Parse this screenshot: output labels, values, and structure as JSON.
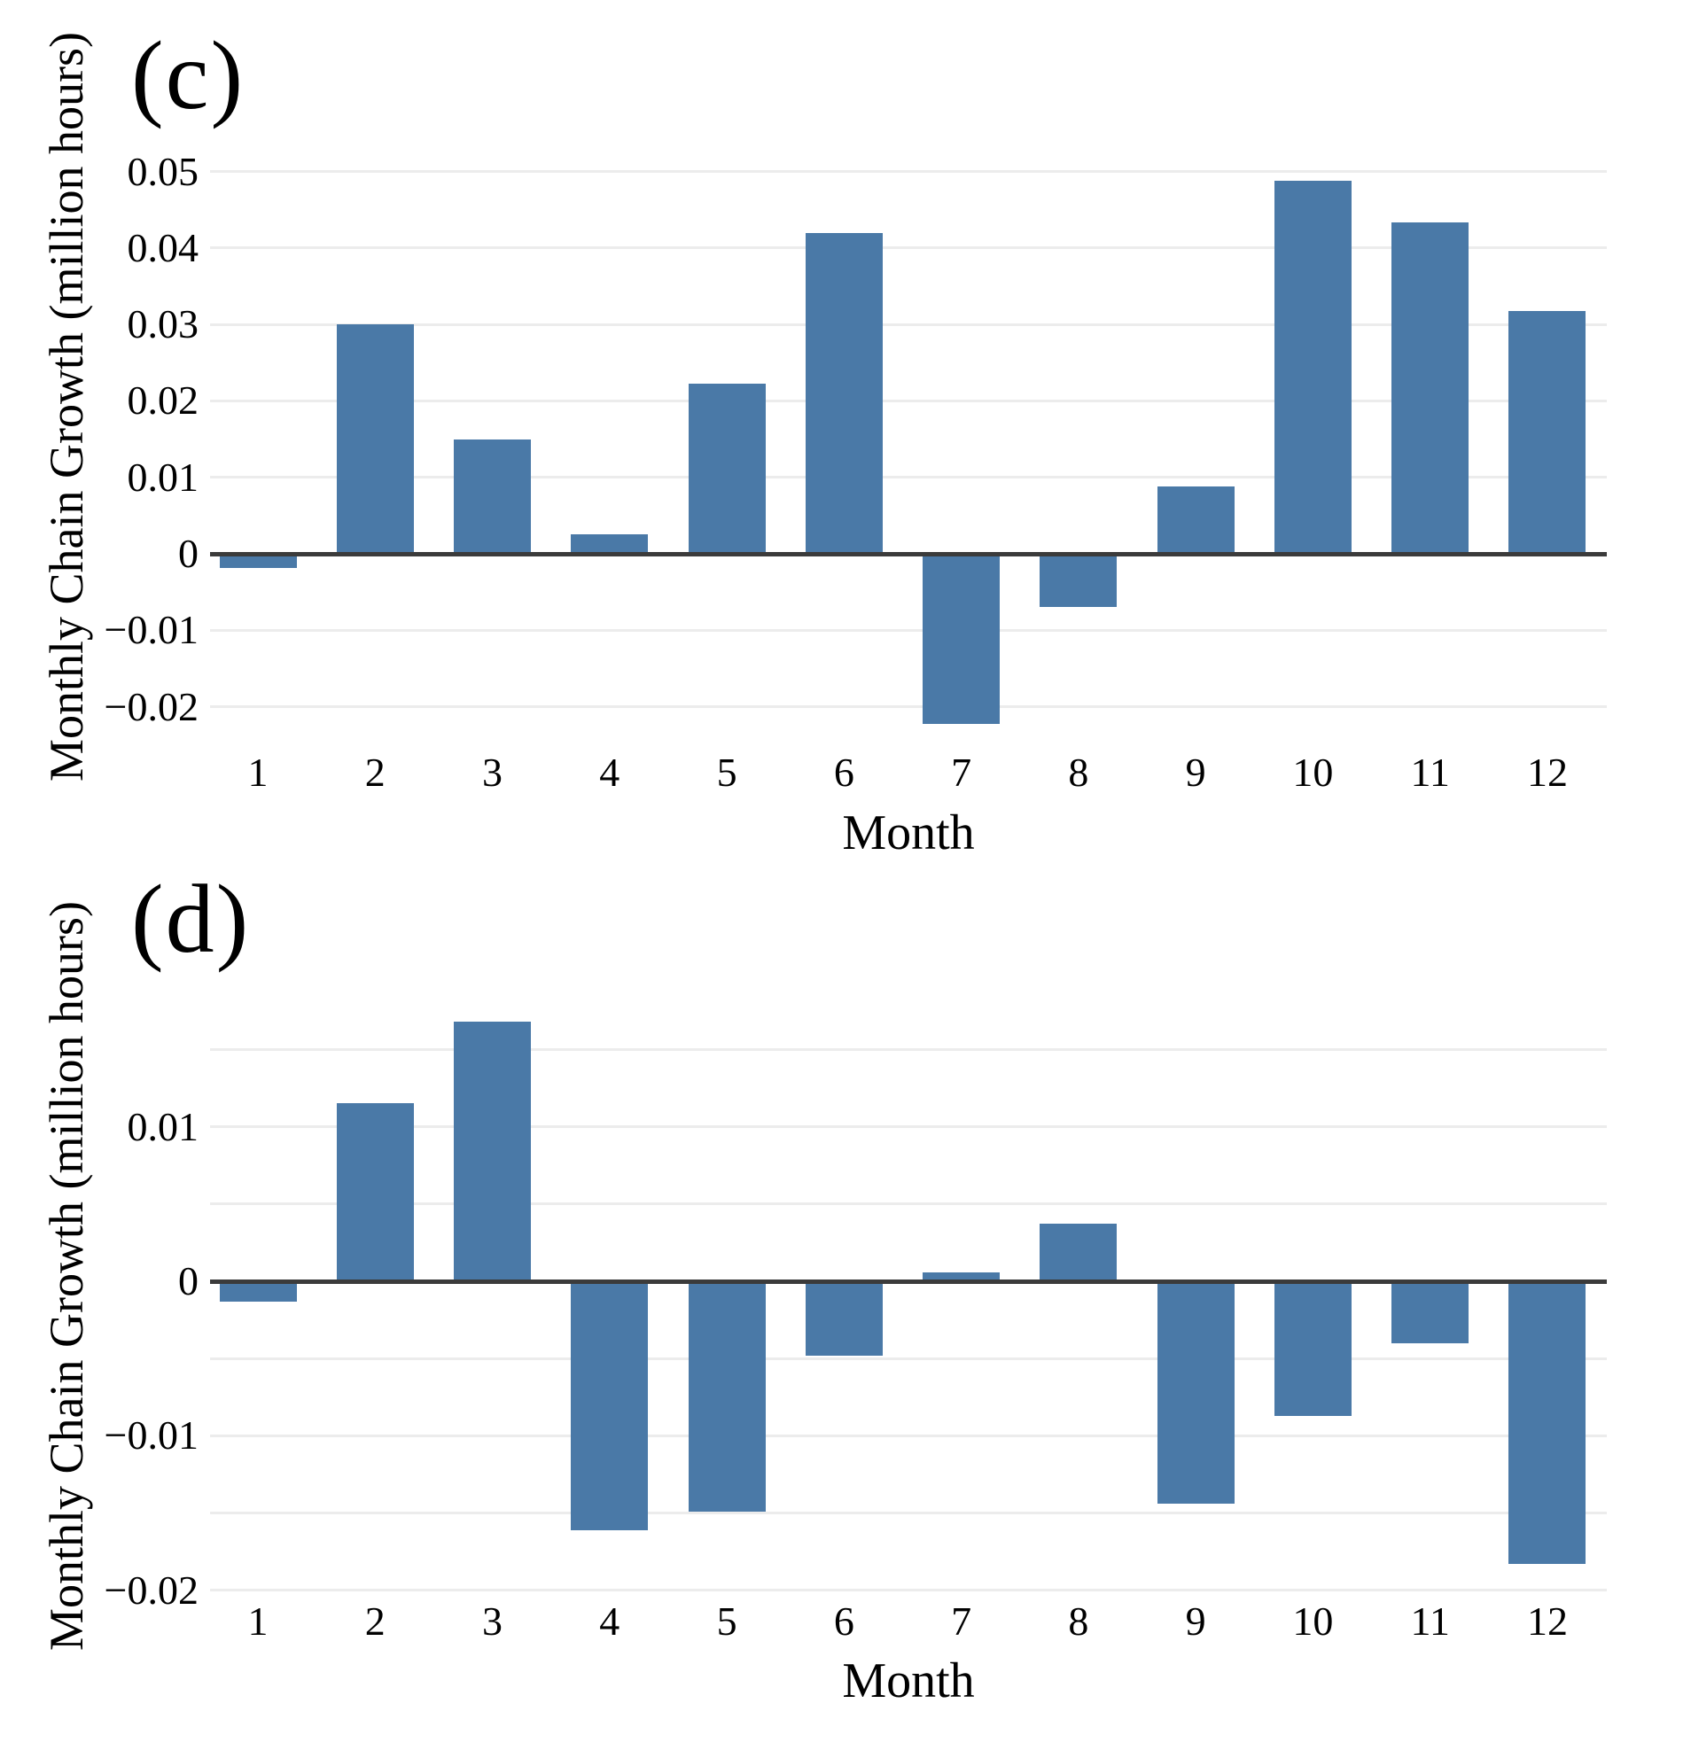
{
  "colors": {
    "bar": "#4a79a7",
    "zero_axis": "#3b3b3b",
    "gridline": "#ececec",
    "text": "#000000",
    "background": "#ffffff"
  },
  "chart_data": [
    {
      "type": "bar",
      "panel_label": "(c)",
      "title": "",
      "xlabel": "Month",
      "ylabel": "Monthly Chain Growth (million hours)",
      "categories": [
        "1",
        "2",
        "3",
        "4",
        "5",
        "6",
        "7",
        "8",
        "9",
        "10",
        "11",
        "12"
      ],
      "values": [
        -0.0018,
        0.03,
        0.015,
        0.0026,
        0.0222,
        0.0419,
        -0.0222,
        -0.007,
        0.0088,
        0.0488,
        0.0433,
        0.0318
      ],
      "ylim": [
        -0.025,
        0.055
      ],
      "ytick_labels": [
        "0.05",
        "0.04",
        "0.03",
        "0.02",
        "0.01",
        "0",
        "−0.01",
        "−0.02"
      ],
      "ytick_values": [
        0.05,
        0.04,
        0.03,
        0.02,
        0.01,
        0,
        -0.01,
        -0.02
      ],
      "gridline_values": [
        0.05,
        0.04,
        0.03,
        0.02,
        0.01,
        -0.01,
        -0.02
      ],
      "legend": "none",
      "grid": "horizontal"
    },
    {
      "type": "bar",
      "panel_label": "(d)",
      "title": "",
      "xlabel": "Month",
      "ylabel": "Monthly Chain Growth (million hours)",
      "categories": [
        "1",
        "2",
        "3",
        "4",
        "5",
        "6",
        "7",
        "8",
        "9",
        "10",
        "11",
        "12"
      ],
      "values": [
        -0.0013,
        0.0115,
        0.0168,
        -0.0161,
        -0.0149,
        -0.0048,
        0.0006,
        0.0037,
        -0.0144,
        -0.0087,
        -0.004,
        -0.0183
      ],
      "ylim": [
        -0.0205,
        0.0187
      ],
      "ytick_labels": [
        "0.01",
        "0",
        "−0.01",
        "−0.02"
      ],
      "ytick_values": [
        0.01,
        0,
        -0.01,
        -0.02
      ],
      "gridline_values": [
        0.015,
        0.01,
        0.005,
        -0.005,
        -0.01,
        -0.015,
        -0.02
      ],
      "legend": "none",
      "grid": "horizontal"
    }
  ]
}
